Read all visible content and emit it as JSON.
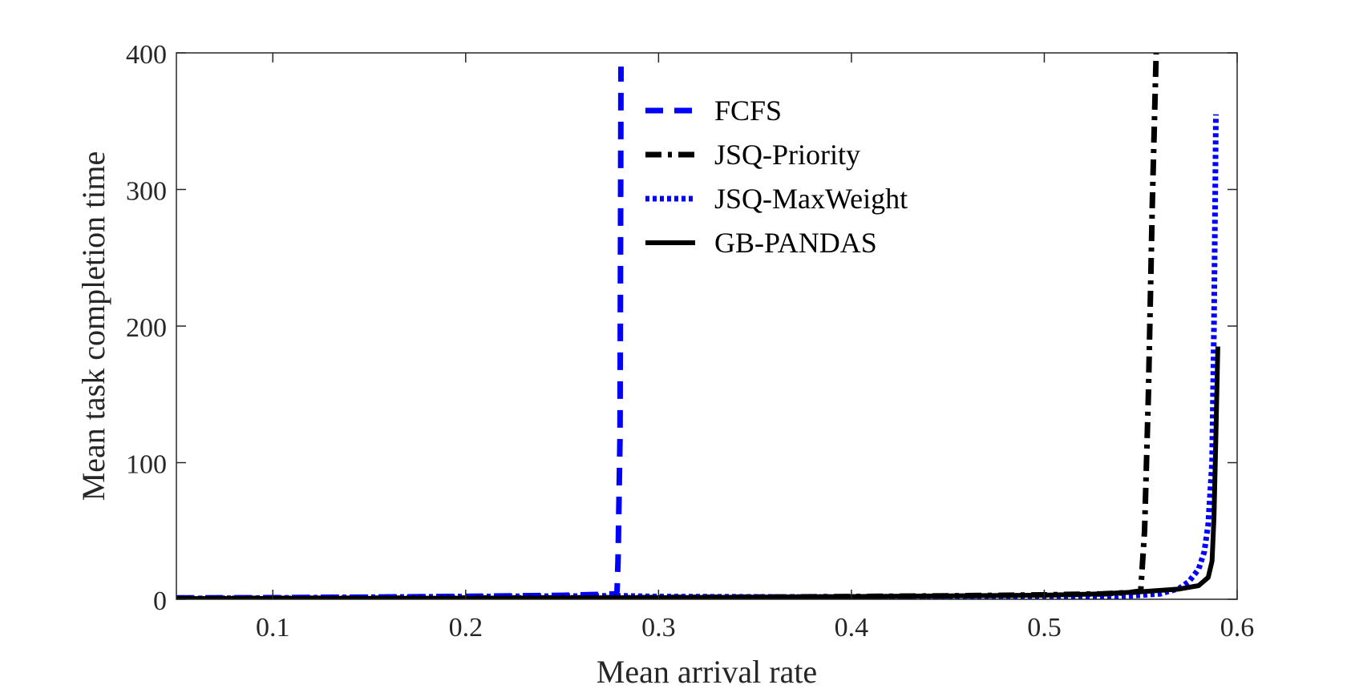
{
  "chart_data": {
    "type": "line",
    "title": "",
    "xlabel": "Mean arrival rate",
    "ylabel": "Mean task completion time",
    "xlim": [
      0.05,
      0.6
    ],
    "ylim": [
      0,
      400
    ],
    "xticks": [
      0.1,
      0.2,
      0.3,
      0.4,
      0.5,
      0.6
    ],
    "yticks": [
      0,
      100,
      200,
      300,
      400
    ],
    "xtick_labels": [
      "0.1",
      "0.2",
      "0.3",
      "0.4",
      "0.5",
      "0.6"
    ],
    "ytick_labels": [
      "0",
      "100",
      "200",
      "300",
      "400"
    ],
    "grid": false,
    "legend_position": "top-center",
    "series": [
      {
        "name": "FCFS",
        "color": "#0000ff",
        "style": "dashed",
        "x": [
          0.05,
          0.1,
          0.15,
          0.2,
          0.25,
          0.27,
          0.278,
          0.2785,
          0.279,
          0.28,
          0.2805
        ],
        "y": [
          1,
          1.2,
          1.6,
          2.1,
          2.9,
          3.6,
          4,
          6,
          28,
          120,
          390
        ]
      },
      {
        "name": "JSQ-Priority",
        "color": "#000000",
        "style": "dashdot",
        "x": [
          0.05,
          0.1,
          0.2,
          0.3,
          0.4,
          0.45,
          0.5,
          0.53,
          0.545,
          0.55,
          0.552,
          0.554,
          0.556,
          0.558
        ],
        "y": [
          0.5,
          0.6,
          0.8,
          1.2,
          2,
          2.5,
          3.2,
          4,
          5,
          6,
          50,
          150,
          290,
          400
        ]
      },
      {
        "name": "JSQ-MaxWeight",
        "color": "#0000ff",
        "style": "dotted",
        "x": [
          0.05,
          0.1,
          0.2,
          0.28,
          0.3,
          0.4,
          0.5,
          0.54,
          0.56,
          0.57,
          0.575,
          0.58,
          0.583,
          0.585,
          0.587,
          0.588,
          0.589
        ],
        "y": [
          0.5,
          1,
          2,
          2.5,
          2,
          1.5,
          1.5,
          2,
          4,
          8,
          13,
          22,
          35,
          55,
          100,
          200,
          355
        ]
      },
      {
        "name": "GB-PANDAS",
        "color": "#000000",
        "style": "solid",
        "x": [
          0.05,
          0.1,
          0.2,
          0.3,
          0.4,
          0.45,
          0.5,
          0.53,
          0.55,
          0.57,
          0.58,
          0.585,
          0.587,
          0.588,
          0.589,
          0.59
        ],
        "y": [
          0.5,
          0.6,
          0.8,
          1.2,
          2,
          2.5,
          3,
          4,
          5.5,
          7.5,
          10,
          16,
          28,
          60,
          120,
          185
        ]
      }
    ]
  }
}
